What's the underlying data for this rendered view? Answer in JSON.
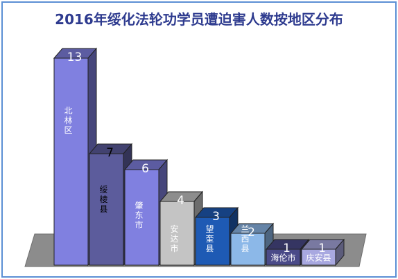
{
  "chart_data": {
    "type": "bar",
    "title": "2016年绥化法轮功学员遭迫害人数按地区分布",
    "categories": [
      "北林区",
      "绥棱县",
      "肇东市",
      "安达市",
      "望奎县",
      "兰西县",
      "海伦市",
      "庆安县"
    ],
    "values": [
      13,
      7,
      6,
      4,
      3,
      2,
      1,
      1
    ],
    "colors": {
      "北林区": "#8080e0",
      "绥棱县": "#5c5c9c",
      "肇东市": "#8080e0",
      "安达市": "#c4c4c4",
      "望奎县": "#1e5ab4",
      "兰西县": "#8cb8e8",
      "海伦市": "#4a4a88",
      "庆安县": "#a8a8e0"
    },
    "label_color": {
      "北林区": "#ffffff",
      "绥棱县": "#000000",
      "肇东市": "#ffffff",
      "安达市": "#ffffff",
      "望奎县": "#ffffff",
      "兰西县": "#ffffff",
      "海伦市": "#ffffff",
      "庆安县": "#ffffff"
    },
    "grid": false,
    "legend": "none",
    "ylim": [
      0,
      14
    ]
  }
}
